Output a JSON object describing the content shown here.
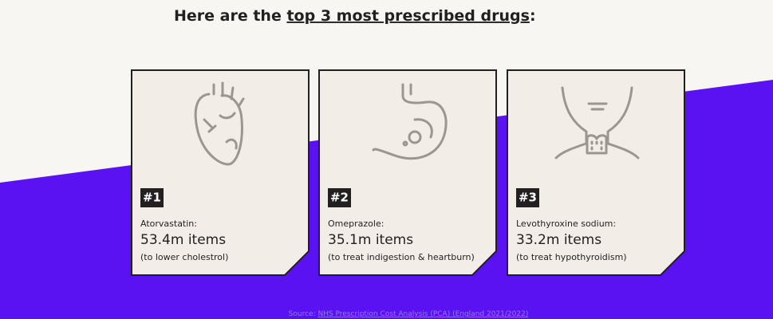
{
  "heading": {
    "prefix": "Here are the ",
    "link": "top 3 most prescribed drugs",
    "suffix": ":"
  },
  "cards": [
    {
      "rank": "#1",
      "name": "Atorvastatin:",
      "amount": "53.4m items",
      "note": "(to lower cholestrol)"
    },
    {
      "rank": "#2",
      "name": "Omeprazole:",
      "amount": "35.1m items",
      "note": "(to treat indigestion & heartburn)"
    },
    {
      "rank": "#3",
      "name": "Levothyroxine sodium:",
      "amount": "33.2m items",
      "note": "(to treat hypothyroidism)"
    }
  ],
  "source": {
    "prefix": "Source: ",
    "link": "NHS Prescription Cost Analysis (PCA) (England 2021/2022)"
  }
}
